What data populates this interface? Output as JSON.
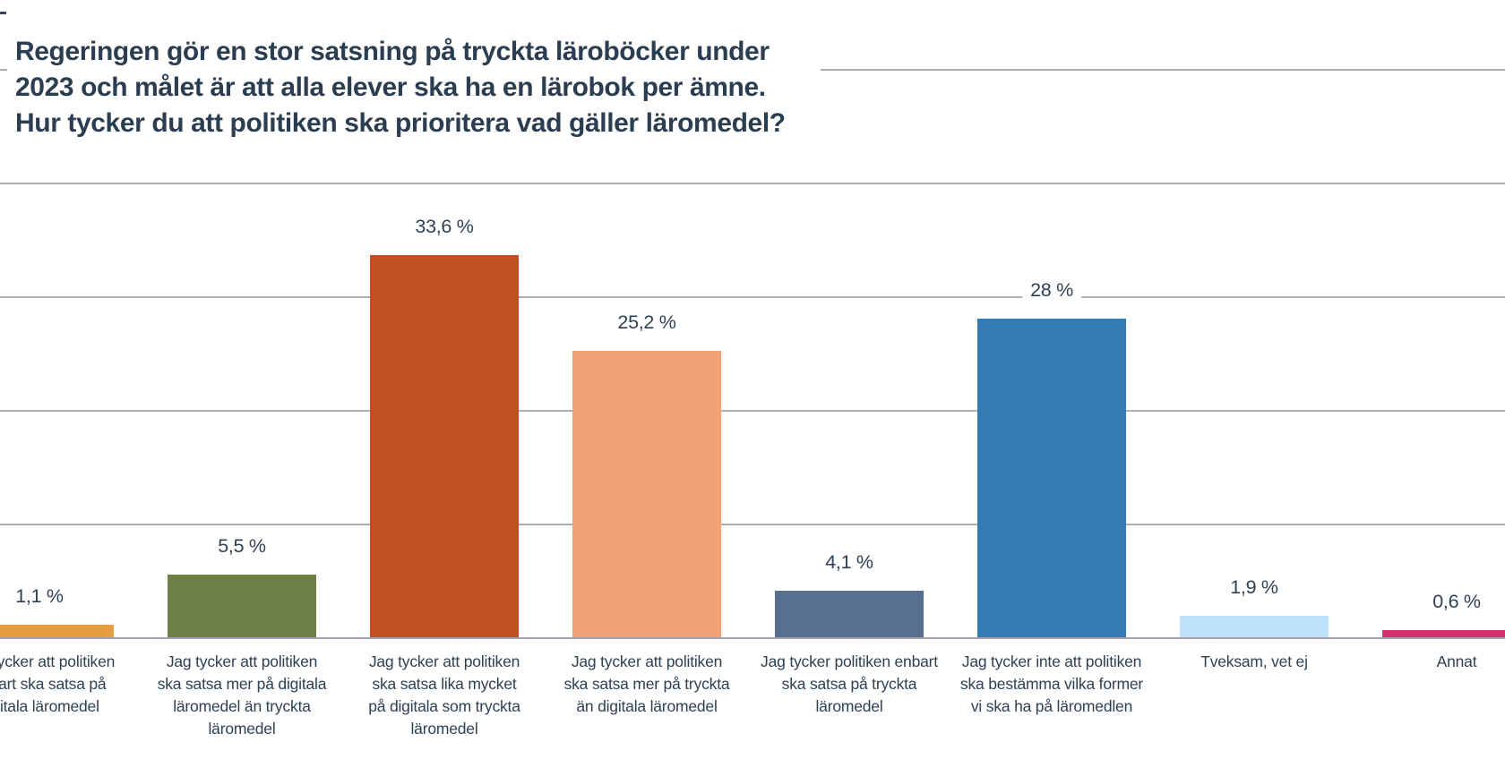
{
  "title": {
    "line1": "Regeringen gör en stor satsning på tryckta läroböcker under",
    "line2": "2023 och målet är att alla elever ska ha en lärobok per ämne.",
    "line3": "Hur tycker du att politiken ska prioritera vad gäller läromedel?"
  },
  "chart_data": {
    "type": "bar",
    "title": "Regeringen gör en stor satsning på tryckta läroböcker under 2023 och målet är att alla elever ska ha en lärobok per ämne. Hur tycker du att politiken ska prioritera vad gäller läromedel?",
    "categories": [
      "Jag tycker att politiken enbart ska satsa på digitala läromedel",
      "Jag tycker att politiken ska satsa mer på digitala läromedel än tryckta läromedel",
      "Jag tycker att politiken ska satsa lika mycket på digitala som tryckta läromedel",
      "Jag tycker att politiken ska satsa mer på tryckta än digitala läromedel",
      "Jag tycker politiken enbart ska satsa på tryckta läromedel",
      "Jag tycker inte att politiken ska bestämma vilka former vi ska ha på läromedlen",
      "Tveksam, vet ej",
      "Annat"
    ],
    "values": [
      1.1,
      5.5,
      33.6,
      25.2,
      4.1,
      28,
      1.9,
      0.6
    ],
    "value_labels": [
      "1,1 %",
      "5,5 %",
      "33,6 %",
      "25,2 %",
      "4,1 %",
      "28 %",
      "1,9 %",
      "0,6 %"
    ],
    "xlabel": "",
    "ylabel": "",
    "ylim": [
      0,
      53
    ],
    "gridline_values": [
      10,
      20,
      30,
      40,
      50
    ],
    "grid": true,
    "legend": false,
    "bar_colors": [
      "#E69F3C",
      "#6D7F46",
      "#C04F22",
      "#F1A276",
      "#57708F",
      "#3579B5",
      "#BCE2F8",
      "#D5306E"
    ],
    "text_color": "#2E4154",
    "gridline_color": "#ABB1B7"
  },
  "bars": [
    {
      "category": "Jag tycker att politiken\nenbart ska satsa på\ndigitala läromedel",
      "value": 1.1,
      "value_label": "1,1 %",
      "color": "#E69F3C"
    },
    {
      "category": "Jag tycker att politiken\nska satsa mer på digitala\nläromedel än tryckta\nläromedel",
      "value": 5.5,
      "value_label": "5,5 %",
      "color": "#6D7F46"
    },
    {
      "category": "Jag tycker att politiken\nska satsa lika mycket\npå digitala som tryckta\nläromedel",
      "value": 33.6,
      "value_label": "33,6 %",
      "color": "#C04F22"
    },
    {
      "category": "Jag tycker att politiken\nska satsa mer på tryckta\nän digitala läromedel",
      "value": 25.2,
      "value_label": "25,2 %",
      "color": "#F1A276"
    },
    {
      "category": "Jag tycker politiken enbart\nska satsa på tryckta\nläromedel",
      "value": 4.1,
      "value_label": "4,1 %",
      "color": "#57708F"
    },
    {
      "category": "Jag tycker inte att politiken\nska bestämma vilka former\nvi ska ha på läromedlen",
      "value": 28,
      "value_label": "28 %",
      "color": "#3579B5"
    },
    {
      "category": "Tveksam, vet ej",
      "value": 1.9,
      "value_label": "1,9 %",
      "color": "#BCE2F8"
    },
    {
      "category": "Annat",
      "value": 0.6,
      "value_label": "0,6 %",
      "color": "#D5306E"
    }
  ]
}
